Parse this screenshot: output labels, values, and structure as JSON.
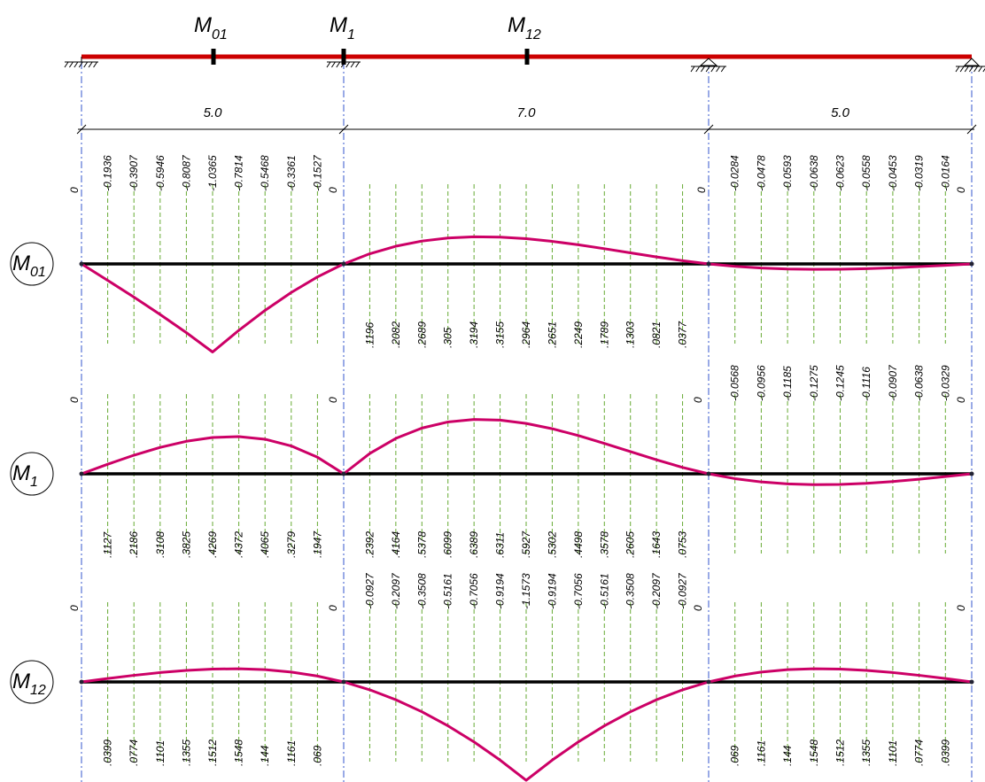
{
  "beam": {
    "section_labels": [
      {
        "base": "M",
        "sub": "01"
      },
      {
        "base": "M",
        "sub": "1"
      },
      {
        "base": "M",
        "sub": "12"
      }
    ],
    "spans": [
      "5.0",
      "7.0",
      "5.0"
    ]
  },
  "diagrams": [
    {
      "label_base": "M",
      "label_sub": "01",
      "spans": [
        {
          "ends": [
            "0",
            "0"
          ],
          "values": [
            "-0.1936",
            "-0.3907",
            "-0.5946",
            "-0.8087",
            "-1.0365",
            "-0.7814",
            "-0.5468",
            "-0.3361",
            "-0.1527"
          ]
        },
        {
          "ends": [
            "",
            ""
          ],
          "values": [
            ".1196",
            ".2082",
            ".2689",
            ".305",
            ".3194",
            ".3155",
            ".2964",
            ".2651",
            ".2249",
            ".1789",
            ".1303",
            ".0821",
            ".0377"
          ]
        },
        {
          "ends": [
            "0",
            "0"
          ],
          "values": [
            "-0.0284",
            "-0.0478",
            "-0.0593",
            "-0.0638",
            "-0.0623",
            "-0.0558",
            "-0.0453",
            "-0.0319",
            "-0.0164"
          ]
        }
      ]
    },
    {
      "label_base": "M",
      "label_sub": "1",
      "spans": [
        {
          "ends": [
            "0",
            "0"
          ],
          "values": [
            ".1127",
            ".2186",
            ".3108",
            ".3825",
            ".4269",
            ".4372",
            ".4065",
            ".3279",
            ".1947"
          ]
        },
        {
          "ends": [
            "",
            "0"
          ],
          "values": [
            ".2392",
            ".4164",
            ".5378",
            ".6099",
            ".6389",
            ".6311",
            ".5927",
            ".5302",
            ".4498",
            ".3578",
            ".2605",
            ".1643",
            ".0753"
          ]
        },
        {
          "ends": [
            "",
            "0"
          ],
          "values": [
            "-0.0568",
            "-0.0956",
            "-0.1185",
            "-0.1275",
            "-0.1245",
            "-0.1116",
            "-0.0907",
            "-0.0638",
            "-0.0329"
          ]
        }
      ]
    },
    {
      "label_base": "M",
      "label_sub": "12",
      "spans": [
        {
          "ends": [
            "0",
            "0"
          ],
          "values": [
            ".0399",
            ".0774",
            ".1101",
            ".1355",
            ".1512",
            ".1548",
            ".144",
            ".1161",
            ".069"
          ]
        },
        {
          "ends": [
            "",
            "0"
          ],
          "values": [
            "-0.0927",
            "-0.2097",
            "-0.3508",
            "-0.5161",
            "-0.7056",
            "-0.9194",
            "-1.1573",
            "-0.9194",
            "-0.7056",
            "-0.5161",
            "-0.3508",
            "-0.2097",
            "-0.0927"
          ]
        },
        {
          "ends": [
            "",
            "0"
          ],
          "values": [
            ".069",
            ".1161",
            ".144",
            ".1548",
            ".1512",
            ".1355",
            ".1101",
            ".0774",
            ".0399"
          ]
        }
      ]
    }
  ],
  "colors": {
    "beam": "#cc0000",
    "curve": "#cc0066",
    "ordinate": "#66aa33",
    "axis_dashdot": "#3355cc",
    "baseline": "#000000"
  }
}
